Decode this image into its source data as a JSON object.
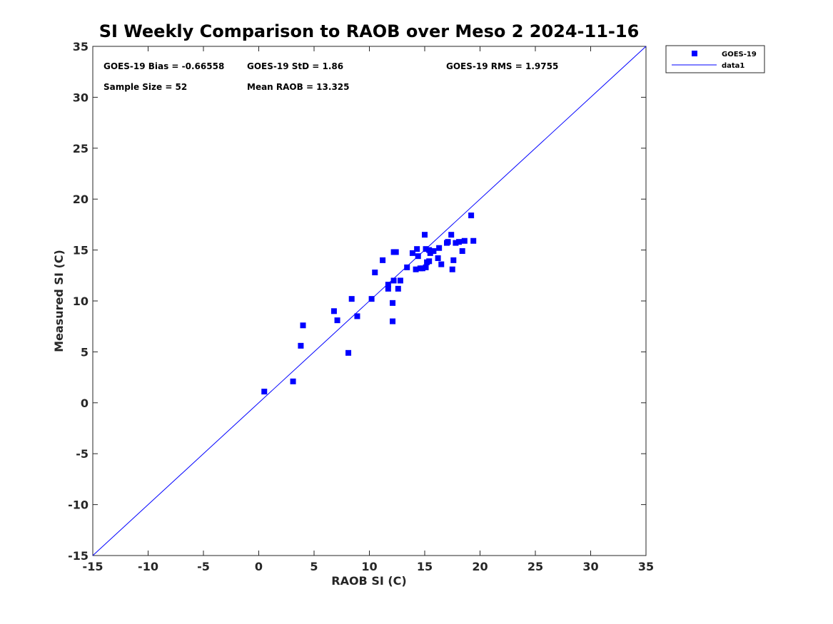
{
  "chart_data": {
    "type": "scatter",
    "title": "SI Weekly Comparison to RAOB over Meso 2 2024-11-16",
    "xlabel": "RAOB SI (C)",
    "ylabel": "Measured SI (C)",
    "xlim": [
      -15,
      35
    ],
    "ylim": [
      -15,
      35
    ],
    "xticks": [
      -15,
      -10,
      -5,
      0,
      5,
      10,
      15,
      20,
      25,
      30,
      35
    ],
    "yticks": [
      -15,
      -10,
      -5,
      0,
      5,
      10,
      15,
      20,
      25,
      30,
      35
    ],
    "grid": false,
    "legend_position": "outside top-right",
    "marker_color": "#0000ff",
    "line_color": "#0000ff",
    "stats": {
      "bias": "GOES-19 Bias = -0.66558",
      "std": "GOES-19 StD = 1.86",
      "rms": "GOES-19 RMS = 1.9755",
      "sample_size": "Sample Size = 52",
      "mean_raob": "Mean RAOB = 13.325"
    },
    "series": [
      {
        "name": "GOES-19",
        "kind": "scatter",
        "marker": "square",
        "points": [
          [
            0.5,
            1.1
          ],
          [
            3.1,
            2.1
          ],
          [
            3.8,
            5.6
          ],
          [
            4.0,
            7.6
          ],
          [
            6.8,
            9.0
          ],
          [
            7.1,
            8.1
          ],
          [
            8.1,
            4.9
          ],
          [
            8.4,
            10.2
          ],
          [
            8.9,
            8.5
          ],
          [
            10.2,
            10.2
          ],
          [
            10.5,
            12.8
          ],
          [
            11.2,
            14.0
          ],
          [
            11.7,
            11.6
          ],
          [
            11.7,
            11.2
          ],
          [
            12.1,
            8.0
          ],
          [
            12.1,
            9.8
          ],
          [
            12.2,
            12.0
          ],
          [
            12.2,
            14.8
          ],
          [
            12.4,
            14.8
          ],
          [
            12.6,
            11.2
          ],
          [
            12.8,
            12.0
          ],
          [
            13.4,
            13.3
          ],
          [
            13.9,
            14.7
          ],
          [
            14.2,
            13.1
          ],
          [
            14.3,
            15.1
          ],
          [
            14.4,
            14.4
          ],
          [
            14.6,
            13.2
          ],
          [
            14.8,
            13.2
          ],
          [
            15.0,
            16.5
          ],
          [
            15.1,
            15.1
          ],
          [
            15.1,
            13.3
          ],
          [
            15.2,
            13.8
          ],
          [
            15.4,
            13.9
          ],
          [
            15.4,
            15.0
          ],
          [
            15.5,
            14.7
          ],
          [
            15.8,
            14.9
          ],
          [
            16.2,
            14.2
          ],
          [
            16.3,
            15.2
          ],
          [
            16.5,
            13.6
          ],
          [
            17.0,
            15.7
          ],
          [
            17.1,
            15.8
          ],
          [
            17.4,
            16.5
          ],
          [
            17.5,
            13.1
          ],
          [
            17.6,
            14.0
          ],
          [
            17.8,
            15.7
          ],
          [
            18.1,
            15.8
          ],
          [
            18.4,
            14.9
          ],
          [
            18.6,
            15.9
          ],
          [
            19.2,
            18.4
          ],
          [
            19.4,
            15.9
          ]
        ]
      },
      {
        "name": "data1",
        "kind": "line",
        "points": [
          [
            -15,
            -15
          ],
          [
            35,
            35
          ]
        ]
      }
    ]
  }
}
